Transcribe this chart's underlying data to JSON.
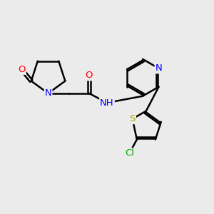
{
  "bg_color": "#ebebeb",
  "atom_color_N": "#0000ff",
  "atom_color_O": "#ff0000",
  "atom_color_S": "#aaaa00",
  "atom_color_Cl": "#00aa00",
  "bond_color": "#000000",
  "bond_width": 1.8,
  "figsize": [
    3.0,
    3.0
  ],
  "dpi": 100,
  "xlim": [
    0,
    10
  ],
  "ylim": [
    0,
    10
  ],
  "font_size": 9.5
}
